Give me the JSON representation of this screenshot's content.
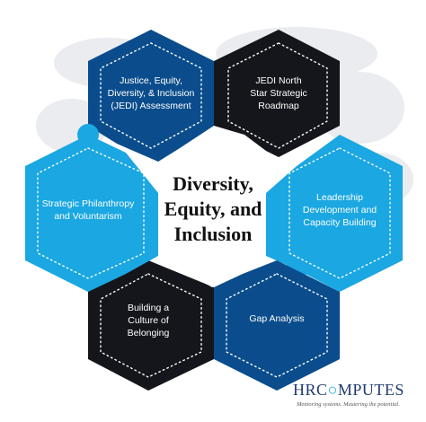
{
  "center": {
    "lines": [
      "Diversity,",
      "Equity, and",
      "Inclusion"
    ]
  },
  "segments": [
    {
      "id": "jedi-assessment",
      "lines": [
        "Justice, Equity,",
        "Diversity, & Inclusion",
        "(JEDI) Assessment"
      ],
      "color": "#0b4d8c"
    },
    {
      "id": "north-star",
      "lines": [
        "JEDI North",
        "Star Strategic",
        "Roadmap"
      ],
      "color": "#15161c"
    },
    {
      "id": "leadership",
      "lines": [
        "Leadership",
        "Development and",
        "Capacity Building"
      ],
      "color": "#1aa7e2"
    },
    {
      "id": "gap-analysis",
      "lines": [
        "Gap Analysis"
      ],
      "color": "#0b4d8c"
    },
    {
      "id": "belonging",
      "lines": [
        "Building a",
        "Culture of",
        "Belonging"
      ],
      "color": "#15161c"
    },
    {
      "id": "philanthropy",
      "lines": [
        "Strategic Philanthropy",
        "and Voluntarism"
      ],
      "color": "#1aa7e2"
    }
  ],
  "brand": {
    "name_pre": "HRC",
    "name_post": "MPUTES",
    "tagline": "Mentoring systems. Mastering the potential."
  },
  "colors": {
    "blue": "#0b4d8c",
    "black": "#15161c",
    "cyan": "#1aa7e2",
    "map": "#d9dde2"
  }
}
